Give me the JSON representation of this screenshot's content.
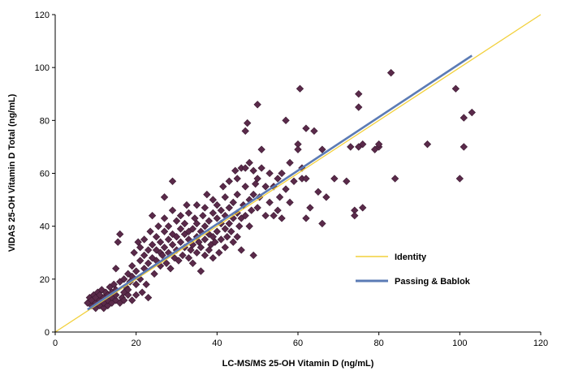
{
  "chart_data": {
    "type": "scatter",
    "title": "",
    "xlabel": "LC-MS/MS 25-OH Vitamin D (ng/mL)",
    "ylabel": "VIDAS 25-OH Vitamin D Total (ng/mL)",
    "xlim": [
      0,
      120
    ],
    "ylim": [
      0,
      120
    ],
    "xticks": [
      "0",
      "20",
      "40",
      "60",
      "80",
      "100",
      "120"
    ],
    "yticks": [
      "0",
      "20",
      "40",
      "60",
      "80",
      "100",
      "120"
    ],
    "grid": false,
    "legend_position": "right",
    "colors": {
      "points": "#5a2a4a",
      "identity": "#f2d03b",
      "passing_bablok": "#5b7bb5"
    },
    "lines": [
      {
        "name": "Identity",
        "x": [
          0,
          120
        ],
        "y": [
          0,
          120
        ]
      },
      {
        "name": "Passing & Bablok",
        "x": [
          8,
          103
        ],
        "y": [
          8.5,
          104.5
        ]
      }
    ],
    "series": [
      {
        "points": [
          [
            8,
            11
          ],
          [
            8.5,
            13
          ],
          [
            9,
            10
          ],
          [
            9,
            12
          ],
          [
            9.5,
            14
          ],
          [
            10,
            9
          ],
          [
            10,
            11
          ],
          [
            10,
            13
          ],
          [
            10.5,
            15
          ],
          [
            11,
            10
          ],
          [
            11,
            12
          ],
          [
            11,
            14
          ],
          [
            11.5,
            16
          ],
          [
            12,
            9
          ],
          [
            12,
            11
          ],
          [
            12,
            13
          ],
          [
            12.5,
            15
          ],
          [
            13,
            10
          ],
          [
            13,
            12
          ],
          [
            13,
            14
          ],
          [
            13.5,
            17
          ],
          [
            14,
            11
          ],
          [
            14,
            13
          ],
          [
            14,
            15
          ],
          [
            14.5,
            18
          ],
          [
            15,
            12
          ],
          [
            15,
            14
          ],
          [
            15,
            16
          ],
          [
            15,
            24
          ],
          [
            15.5,
            34
          ],
          [
            16,
            37
          ],
          [
            16,
            19
          ],
          [
            16,
            11
          ],
          [
            16.5,
            13
          ],
          [
            17,
            15
          ],
          [
            17,
            20
          ],
          [
            17,
            12
          ],
          [
            17.5,
            17
          ],
          [
            18,
            22
          ],
          [
            18,
            14
          ],
          [
            18,
            16
          ],
          [
            18.5,
            19
          ],
          [
            19,
            12
          ],
          [
            19,
            21
          ],
          [
            19,
            25
          ],
          [
            19.5,
            30
          ],
          [
            20,
            18
          ],
          [
            20,
            23
          ],
          [
            20,
            14
          ],
          [
            20.5,
            34
          ],
          [
            21,
            20
          ],
          [
            21,
            27
          ],
          [
            21,
            32
          ],
          [
            21.5,
            15
          ],
          [
            22,
            24
          ],
          [
            22,
            29
          ],
          [
            22,
            35
          ],
          [
            22.5,
            18
          ],
          [
            23,
            26
          ],
          [
            23,
            31
          ],
          [
            23,
            13
          ],
          [
            23.5,
            38
          ],
          [
            24,
            28
          ],
          [
            24,
            33
          ],
          [
            24,
            44
          ],
          [
            24.5,
            22
          ],
          [
            25,
            27
          ],
          [
            25,
            31
          ],
          [
            25,
            36
          ],
          [
            25.5,
            40
          ],
          [
            26,
            25
          ],
          [
            26,
            30
          ],
          [
            26,
            34
          ],
          [
            26.5,
            29
          ],
          [
            27,
            32
          ],
          [
            27,
            38
          ],
          [
            27,
            43
          ],
          [
            27,
            51
          ],
          [
            27.5,
            26
          ],
          [
            28,
            30
          ],
          [
            28,
            35
          ],
          [
            28,
            40
          ],
          [
            28.5,
            24
          ],
          [
            29,
            33
          ],
          [
            29,
            37
          ],
          [
            29,
            46
          ],
          [
            29,
            57
          ],
          [
            29.5,
            28
          ],
          [
            30,
            31
          ],
          [
            30,
            36
          ],
          [
            30,
            42
          ],
          [
            30.5,
            27
          ],
          [
            31,
            34
          ],
          [
            31,
            39
          ],
          [
            31,
            44
          ],
          [
            31.5,
            29
          ],
          [
            32,
            32
          ],
          [
            32,
            37
          ],
          [
            32,
            41
          ],
          [
            32.5,
            48
          ],
          [
            33,
            28
          ],
          [
            33,
            35
          ],
          [
            33,
            38
          ],
          [
            33,
            45
          ],
          [
            33.5,
            31
          ],
          [
            34,
            26
          ],
          [
            34,
            33
          ],
          [
            34,
            39
          ],
          [
            34.5,
            43
          ],
          [
            35,
            30
          ],
          [
            35,
            36
          ],
          [
            35,
            41
          ],
          [
            35,
            48
          ],
          [
            35.5,
            34
          ],
          [
            36,
            23
          ],
          [
            36,
            32
          ],
          [
            36,
            38
          ],
          [
            36.5,
            44
          ],
          [
            37,
            29
          ],
          [
            37,
            35
          ],
          [
            37,
            40
          ],
          [
            37,
            47
          ],
          [
            37.5,
            52
          ],
          [
            38,
            31
          ],
          [
            38,
            37
          ],
          [
            38,
            42
          ],
          [
            38.5,
            33
          ],
          [
            39,
            28
          ],
          [
            39,
            36
          ],
          [
            39,
            45
          ],
          [
            39,
            50
          ],
          [
            39.5,
            34
          ],
          [
            40,
            38
          ],
          [
            40,
            43
          ],
          [
            40,
            48
          ],
          [
            40.5,
            30
          ],
          [
            41,
            35
          ],
          [
            41,
            41
          ],
          [
            41,
            46
          ],
          [
            41.5,
            55
          ],
          [
            42,
            32
          ],
          [
            42,
            39
          ],
          [
            42,
            44
          ],
          [
            42,
            51
          ],
          [
            42.5,
            36
          ],
          [
            43,
            41
          ],
          [
            43,
            47
          ],
          [
            43,
            57
          ],
          [
            43.5,
            38
          ],
          [
            44,
            34
          ],
          [
            44,
            43
          ],
          [
            44,
            49
          ],
          [
            44.5,
            61
          ],
          [
            45,
            36
          ],
          [
            45,
            45
          ],
          [
            45,
            52
          ],
          [
            45,
            58
          ],
          [
            45.5,
            40
          ],
          [
            46,
            31
          ],
          [
            46,
            43
          ],
          [
            46,
            62
          ],
          [
            46.5,
            48
          ],
          [
            47,
            44
          ],
          [
            47,
            55
          ],
          [
            47,
            62
          ],
          [
            47,
            76
          ],
          [
            47.5,
            79
          ],
          [
            48,
            40
          ],
          [
            48,
            50
          ],
          [
            48,
            64
          ],
          [
            48.5,
            46
          ],
          [
            49,
            29
          ],
          [
            49,
            52
          ],
          [
            49,
            61
          ],
          [
            49.5,
            56
          ],
          [
            50,
            86
          ],
          [
            50,
            47
          ],
          [
            50,
            58
          ],
          [
            50.5,
            51
          ],
          [
            51,
            69
          ],
          [
            51,
            62
          ],
          [
            52,
            44
          ],
          [
            52,
            55
          ],
          [
            53,
            49
          ],
          [
            53,
            60
          ],
          [
            54,
            44
          ],
          [
            54,
            55
          ],
          [
            55,
            46
          ],
          [
            55,
            58
          ],
          [
            55.5,
            51
          ],
          [
            56,
            43
          ],
          [
            56,
            60
          ],
          [
            57,
            80
          ],
          [
            57,
            54
          ],
          [
            58,
            49
          ],
          [
            58,
            64
          ],
          [
            59,
            57
          ],
          [
            60,
            71
          ],
          [
            60,
            69
          ],
          [
            60.5,
            92
          ],
          [
            61,
            62
          ],
          [
            61,
            58
          ],
          [
            62,
            77
          ],
          [
            62,
            58
          ],
          [
            62,
            43
          ],
          [
            63,
            47
          ],
          [
            64,
            76
          ],
          [
            65,
            53
          ],
          [
            66,
            69
          ],
          [
            66,
            41
          ],
          [
            67,
            51
          ],
          [
            69,
            58
          ],
          [
            72,
            57
          ],
          [
            73,
            70
          ],
          [
            74,
            46
          ],
          [
            74,
            44
          ],
          [
            75,
            90
          ],
          [
            75,
            85
          ],
          [
            75,
            70
          ],
          [
            76,
            71
          ],
          [
            76,
            47
          ],
          [
            79,
            69
          ],
          [
            80,
            70
          ],
          [
            80,
            71
          ],
          [
            83,
            98
          ],
          [
            84,
            58
          ],
          [
            92,
            71
          ],
          [
            99,
            92
          ],
          [
            100,
            58
          ],
          [
            101,
            81
          ],
          [
            101,
            70
          ],
          [
            103,
            83
          ]
        ]
      }
    ],
    "legend": [
      {
        "label": "Identity"
      },
      {
        "label": "Passing & Bablok"
      }
    ]
  }
}
